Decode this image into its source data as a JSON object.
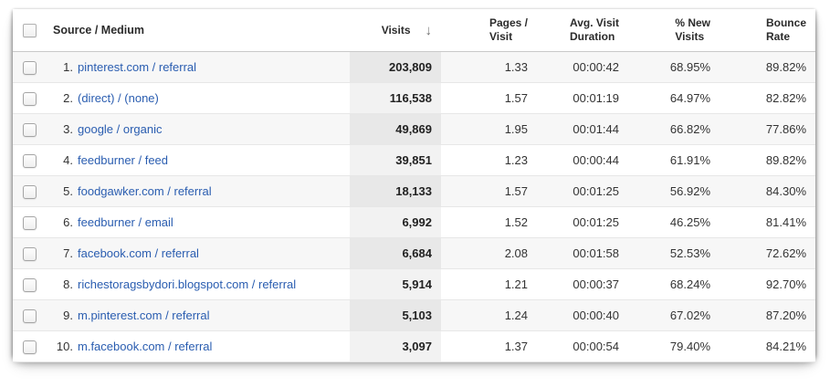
{
  "table": {
    "header": {
      "select_all_checkbox_checked": false,
      "source_medium_label": "Source / Medium",
      "sorted_column": "Visits",
      "sort_direction": "descending",
      "columns": [
        {
          "label": "Visits"
        },
        {
          "label_line1": "Pages /",
          "label_line2": "Visit"
        },
        {
          "label_line1": "Avg. Visit",
          "label_line2": "Duration"
        },
        {
          "label_line1": "% New",
          "label_line2": "Visits"
        },
        {
          "label_line1": "Bounce",
          "label_line2": "Rate"
        }
      ]
    },
    "rows": [
      {
        "index": "1.",
        "source_medium": "pinterest.com / referral",
        "visits": "203,809",
        "pages_per_visit": "1.33",
        "avg_visit_duration": "00:00:42",
        "pct_new_visits": "68.95%",
        "bounce_rate": "89.82%"
      },
      {
        "index": "2.",
        "source_medium": "(direct) / (none)",
        "visits": "116,538",
        "pages_per_visit": "1.57",
        "avg_visit_duration": "00:01:19",
        "pct_new_visits": "64.97%",
        "bounce_rate": "82.82%"
      },
      {
        "index": "3.",
        "source_medium": "google / organic",
        "visits": "49,869",
        "pages_per_visit": "1.95",
        "avg_visit_duration": "00:01:44",
        "pct_new_visits": "66.82%",
        "bounce_rate": "77.86%"
      },
      {
        "index": "4.",
        "source_medium": "feedburner / feed",
        "visits": "39,851",
        "pages_per_visit": "1.23",
        "avg_visit_duration": "00:00:44",
        "pct_new_visits": "61.91%",
        "bounce_rate": "89.82%"
      },
      {
        "index": "5.",
        "source_medium": "foodgawker.com / referral",
        "visits": "18,133",
        "pages_per_visit": "1.57",
        "avg_visit_duration": "00:01:25",
        "pct_new_visits": "56.92%",
        "bounce_rate": "84.30%"
      },
      {
        "index": "6.",
        "source_medium": "feedburner / email",
        "visits": "6,992",
        "pages_per_visit": "1.52",
        "avg_visit_duration": "00:01:25",
        "pct_new_visits": "46.25%",
        "bounce_rate": "81.41%"
      },
      {
        "index": "7.",
        "source_medium": "facebook.com / referral",
        "visits": "6,684",
        "pages_per_visit": "2.08",
        "avg_visit_duration": "00:01:58",
        "pct_new_visits": "52.53%",
        "bounce_rate": "72.62%"
      },
      {
        "index": "8.",
        "source_medium": "richestoragsbydori.blogspot.com / referral",
        "visits": "5,914",
        "pages_per_visit": "1.21",
        "avg_visit_duration": "00:00:37",
        "pct_new_visits": "68.24%",
        "bounce_rate": "92.70%"
      },
      {
        "index": "9.",
        "source_medium": "m.pinterest.com / referral",
        "visits": "5,103",
        "pages_per_visit": "1.24",
        "avg_visit_duration": "00:00:40",
        "pct_new_visits": "67.02%",
        "bounce_rate": "87.20%"
      },
      {
        "index": "10.",
        "source_medium": "m.facebook.com / referral",
        "visits": "3,097",
        "pages_per_visit": "1.37",
        "avg_visit_duration": "00:00:54",
        "pct_new_visits": "79.40%",
        "bounce_rate": "84.21%"
      }
    ]
  },
  "icons": {
    "sort_descending_arrow": "↓"
  },
  "colors": {
    "link_blue": "#2a5db0",
    "row_alt_bg": "#f7f7f7",
    "visits_col_bg": "#e8e8e8",
    "visits_col_alt_bg": "#f2f2f2",
    "header_border": "#c9c9c9",
    "row_border": "#e7e7e7"
  }
}
